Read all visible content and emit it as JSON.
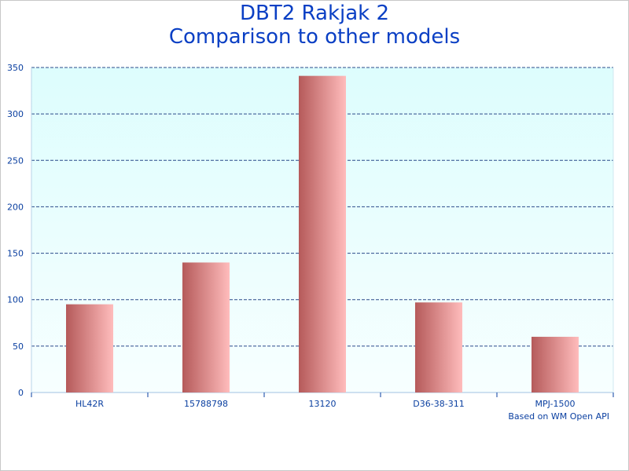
{
  "title_line1": "DBT2 Rakjak 2",
  "title_line2": "Comparison to other models",
  "credit": "Based on WM Open API",
  "colors": {
    "title": "#0a3fc4",
    "axis_text": "#0a3fa0",
    "grid": "#2a4a8a",
    "plot_bg_top": "#ddfdfd",
    "plot_bg_bottom": "#f7ffff",
    "bar_dark": "#b55a5a",
    "bar_light": "#ffbcbc"
  },
  "chart_data": {
    "type": "bar",
    "title": "DBT2 Rakjak 2 Comparison to other models",
    "categories": [
      "HL42R",
      "15788798",
      "13120",
      "D36-38-311",
      "MPJ-1500"
    ],
    "values": [
      95,
      140,
      341,
      97,
      60
    ],
    "ylim": [
      0,
      350
    ],
    "yticks": [
      0,
      50,
      100,
      150,
      200,
      250,
      300,
      350
    ],
    "grid": true,
    "xlabel": "",
    "ylabel": ""
  }
}
